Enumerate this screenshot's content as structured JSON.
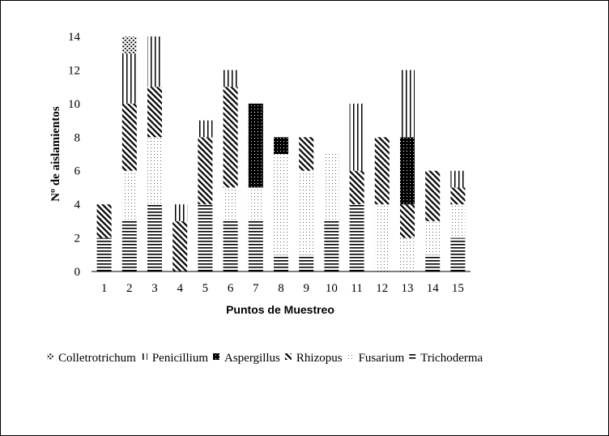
{
  "chart_data": {
    "type": "bar",
    "stacked": true,
    "title": "",
    "xlabel": "Puntos de Muestreo",
    "ylabel": "Nº de aislamientos",
    "ylim": [
      0,
      14
    ],
    "yticks": [
      0,
      2,
      4,
      6,
      8,
      10,
      12,
      14
    ],
    "grid": false,
    "legend_position": "bottom",
    "categories": [
      "1",
      "2",
      "3",
      "4",
      "5",
      "6",
      "7",
      "8",
      "9",
      "10",
      "11",
      "12",
      "13",
      "14",
      "15"
    ],
    "series": [
      {
        "name": "Trichoderma",
        "pattern": "horizontal-lines",
        "values": [
          2,
          3,
          4,
          0,
          4,
          3,
          3,
          1,
          1,
          3,
          4,
          0,
          0,
          1,
          2
        ]
      },
      {
        "name": "Fusarium",
        "pattern": "dots",
        "values": [
          0,
          3,
          4,
          0,
          0,
          2,
          2,
          6,
          5,
          4,
          0,
          4,
          2,
          2,
          2
        ]
      },
      {
        "name": "Rhizopus",
        "pattern": "diagonal-lines",
        "values": [
          2,
          4,
          3,
          3,
          4,
          6,
          0,
          0,
          2,
          0,
          2,
          4,
          2,
          3,
          1
        ]
      },
      {
        "name": "Aspergillus",
        "pattern": "dense-dark",
        "values": [
          0,
          0,
          0,
          0,
          0,
          0,
          5,
          1,
          0,
          0,
          0,
          0,
          4,
          0,
          0
        ]
      },
      {
        "name": "Penicillium",
        "pattern": "vertical-lines",
        "values": [
          0,
          3,
          3,
          1,
          1,
          1,
          0,
          0,
          0,
          0,
          4,
          0,
          4,
          0,
          1
        ]
      },
      {
        "name": "Colletrotrichum",
        "pattern": "coarse-dots",
        "values": [
          0,
          1,
          0,
          0,
          0,
          0,
          0,
          0,
          0,
          0,
          0,
          0,
          0,
          0,
          0
        ]
      }
    ],
    "legend_order": [
      "Colletrotrichum",
      "Penicillium",
      "Aspergillus",
      "Rhizopus",
      "Fusarium",
      "Trichoderma"
    ]
  }
}
